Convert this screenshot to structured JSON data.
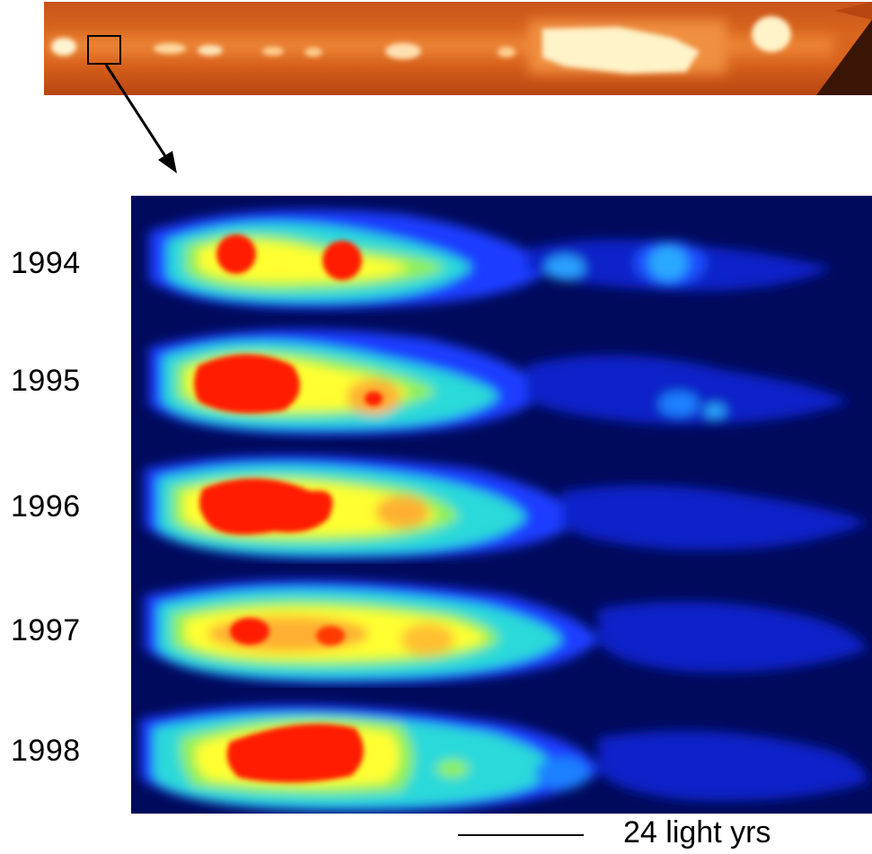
{
  "panels": [
    {
      "year": "1994"
    },
    {
      "year": "1995"
    },
    {
      "year": "1996"
    },
    {
      "year": "1997"
    },
    {
      "year": "1998"
    }
  ],
  "scale": {
    "label": "24 light yrs"
  },
  "colors": {
    "jet_background": "#d9661e",
    "jet_knots": "#fff3c8",
    "map_background": "#000a5c",
    "map_low": "#1a3cff",
    "map_mid": "#2ad9d9",
    "map_high": "#ffff33",
    "map_peak": "#ff1a00"
  }
}
